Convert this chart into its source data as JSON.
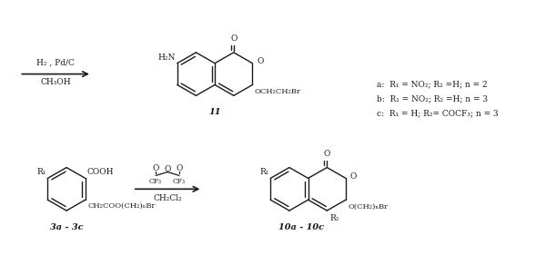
{
  "background_color": "#ffffff",
  "fig_width": 6.0,
  "fig_height": 2.81,
  "dpi": 100,
  "text_color": "#1a1a1a",
  "line_color": "#1a1a1a",
  "font_family": "DejaVu Serif",
  "font_size": 6.5,
  "legend": {
    "a": "a:  R₁ = NO₂; R₂ =H; n = 2",
    "b": "b:  R₁ = NO₂; R₂ =H; n = 3",
    "c": "c:  R₁ = H; R₂= COCF₃; n = 3"
  },
  "reactant_label": "3a - 3c",
  "product1_label": "10a - 10c",
  "product2_label": "11",
  "reagent1_top": "CH₂Cl₂",
  "reagent2_top1": "H₂ , Pd/C",
  "reagent2_top2": "CH₃OH"
}
